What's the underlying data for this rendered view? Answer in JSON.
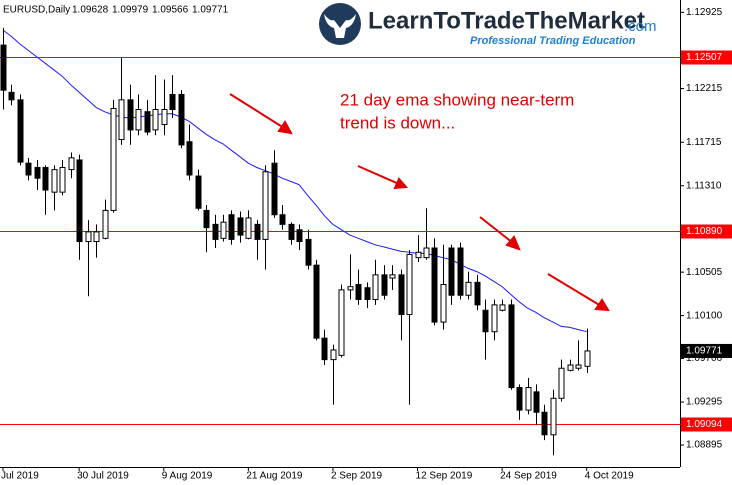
{
  "chart_data": {
    "type": "candlestick",
    "title": "EURUSD,Daily",
    "logo": {
      "name": "LearnToTradeTheMarket",
      "domain": ".com",
      "tagline": "Professional Trading Education"
    },
    "annotation": [
      "21 day ema showing near-term",
      "trend is down..."
    ],
    "categories": [
      "Jul 2019",
      null,
      null,
      null,
      null,
      null,
      null,
      null,
      null,
      "30 Jul 2019",
      null,
      null,
      null,
      null,
      null,
      null,
      null,
      null,
      null,
      "9 Aug 2019",
      null,
      null,
      null,
      null,
      null,
      null,
      null,
      null,
      null,
      "21 Aug 2019",
      null,
      null,
      null,
      null,
      null,
      null,
      null,
      null,
      null,
      "2 Sep 2019",
      null,
      null,
      null,
      null,
      null,
      null,
      null,
      null,
      null,
      "12 Sep 2019",
      null,
      null,
      null,
      null,
      null,
      null,
      null,
      null,
      null,
      "24 Sep 2019",
      null,
      null,
      null,
      null,
      null,
      null,
      null,
      null,
      null,
      "4 Oct 2019"
    ],
    "open": [
      1.1262,
      1.1218,
      1.1211,
      1.1152,
      1.1148,
      1.1148,
      1.1125,
      1.1125,
      1.1146,
      1.1155,
      1.1079,
      1.1079,
      1.1082,
      1.1108,
      1.1174,
      1.1211,
      1.1183,
      1.12,
      1.1183,
      1.1188,
      1.1216,
      1.1216,
      1.1172,
      1.114,
      1.1108,
      1.1095,
      1.1082,
      1.1104,
      1.1101,
      1.1082,
      1.1095,
      1.1081,
      1.1152,
      1.1104,
      1.1095,
      1.109,
      1.1081,
      1.1057,
      1.0989,
      1.0969,
      1.0973,
      1.1034,
      1.1039,
      1.1036,
      1.1025,
      1.1048,
      1.1045,
      1.1048,
      1.1011,
      1.1064,
      1.1064,
      1.1073,
      1.1004,
      1.1073,
      1.1073,
      1.1029,
      1.1041,
      1.1015,
      1.0995,
      1.1015,
      1.102,
      1.0943,
      1.0922,
      1.0939,
      1.092,
      1.0899,
      1.0933,
      1.0959,
      1.0961,
      1.09628
    ],
    "high": [
      1.1278,
      1.1225,
      1.1216,
      1.1157,
      1.1155,
      1.115,
      1.115,
      1.1155,
      1.1162,
      1.116,
      1.1099,
      1.1095,
      1.1118,
      1.1211,
      1.1251,
      1.1225,
      1.1216,
      1.1211,
      1.1234,
      1.123,
      1.1234,
      1.122,
      1.1188,
      1.1146,
      1.1113,
      1.1104,
      1.1104,
      1.1108,
      1.1107,
      1.1108,
      1.1099,
      1.115,
      1.1164,
      1.1113,
      1.1097,
      1.1095,
      1.109,
      1.1062,
      1.0997,
      1.0983,
      1.1039,
      1.1067,
      1.1053,
      1.1041,
      1.1062,
      1.1057,
      1.1057,
      1.1053,
      1.1071,
      1.1085,
      1.111,
      1.1082,
      1.1076,
      1.1076,
      1.1078,
      1.1051,
      1.1048,
      1.1025,
      1.1025,
      1.1025,
      1.1025,
      1.0946,
      1.0952,
      1.0946,
      1.0927,
      1.0941,
      1.0969,
      1.0969,
      1.0987,
      1.09979
    ],
    "low": [
      1.1202,
      1.1206,
      1.115,
      1.1136,
      1.1127,
      1.1104,
      1.1108,
      1.1122,
      1.1138,
      1.1062,
      1.1028,
      1.1064,
      1.1081,
      1.1106,
      1.1169,
      1.1169,
      1.1178,
      1.1178,
      1.1178,
      1.1178,
      1.1194,
      1.1166,
      1.1136,
      1.1108,
      1.1069,
      1.1073,
      1.1079,
      1.1076,
      1.1078,
      1.1081,
      1.1062,
      1.1053,
      1.1101,
      1.109,
      1.1076,
      1.1071,
      1.1053,
      1.0987,
      1.0964,
      1.0927,
      1.0971,
      1.1025,
      1.102,
      1.1017,
      1.102,
      1.1025,
      1.1034,
      1.0987,
      1.0927,
      1.106,
      1.1062,
      1.1001,
      1.0997,
      1.102,
      1.1025,
      1.1025,
      1.1015,
      1.0969,
      1.0987,
      1.1014,
      1.0941,
      1.0913,
      1.0918,
      1.0908,
      1.0894,
      1.088,
      1.093,
      1.0958,
      1.0959,
      1.09566
    ],
    "close": [
      1.122,
      1.1211,
      1.1153,
      1.1141,
      1.1138,
      1.1127,
      1.1146,
      1.1148,
      1.1157,
      1.1079,
      1.1088,
      1.1088,
      1.1108,
      1.1203,
      1.1211,
      1.1183,
      1.1202,
      1.1181,
      1.1202,
      1.1202,
      1.1202,
      1.1169,
      1.1141,
      1.111,
      1.1092,
      1.1081,
      1.1097,
      1.1081,
      1.1085,
      1.1101,
      1.1081,
      1.1144,
      1.1104,
      1.1095,
      1.1081,
      1.1079,
      1.1057,
      1.0989,
      1.0969,
      1.0978,
      1.1034,
      1.1037,
      1.1025,
      1.1025,
      1.1048,
      1.1029,
      1.1048,
      1.1011,
      1.1067,
      1.1069,
      1.1073,
      1.1004,
      1.1039,
      1.1029,
      1.1029,
      1.1041,
      1.102,
      1.0995,
      1.102,
      1.102,
      1.0943,
      1.0922,
      1.0943,
      1.092,
      1.0899,
      1.0933,
      1.0961,
      1.0964,
      1.0964,
      1.09771
    ],
    "ema": {
      "color": "#1a1aff",
      "values": [
        1.1276,
        1.127,
        1.1263,
        1.1257,
        1.1251,
        1.1245,
        1.1239,
        1.1233,
        1.1225,
        1.1218,
        1.1211,
        1.1204,
        1.12,
        1.1197,
        1.1195,
        1.1194,
        1.1195,
        1.1196,
        1.1197,
        1.1198,
        1.1198,
        1.1195,
        1.1191,
        1.1185,
        1.1179,
        1.1174,
        1.117,
        1.1164,
        1.1158,
        1.1152,
        1.1148,
        1.1145,
        1.1142,
        1.1138,
        1.1135,
        1.1132,
        1.1122,
        1.1113,
        1.1103,
        1.1095,
        1.109,
        1.1085,
        1.1082,
        1.1079,
        1.1076,
        1.1074,
        1.1072,
        1.107,
        1.1069,
        1.1068,
        1.1068,
        1.1066,
        1.1064,
        1.1062,
        1.1058,
        1.1054,
        1.1051,
        1.1047,
        1.1042,
        1.1037,
        1.103,
        1.1023,
        1.1017,
        1.1013,
        1.1008,
        1.1004,
        1.1,
        1.0999,
        1.0997,
        1.0995
      ]
    },
    "bull_color": "#ffffff",
    "bear_color": "#000000",
    "levels": [
      1.12507,
      {
        "value": 1.1089,
        "label": "1.10890"
      },
      1.09094
    ],
    "level_color": "#ff0000",
    "ylim": [
      1.0869,
      1.1304
    ],
    "yticks": [
      1.12925,
      1.12215,
      1.11715,
      {
        "value": 1.1131,
        "label": "1.11310"
      },
      1.10505,
      {
        "value": 1.101,
        "label": "1.10100"
      },
      {
        "value": 1.097,
        "label": "1.09700"
      },
      1.09295,
      1.08895
    ]
  }
}
